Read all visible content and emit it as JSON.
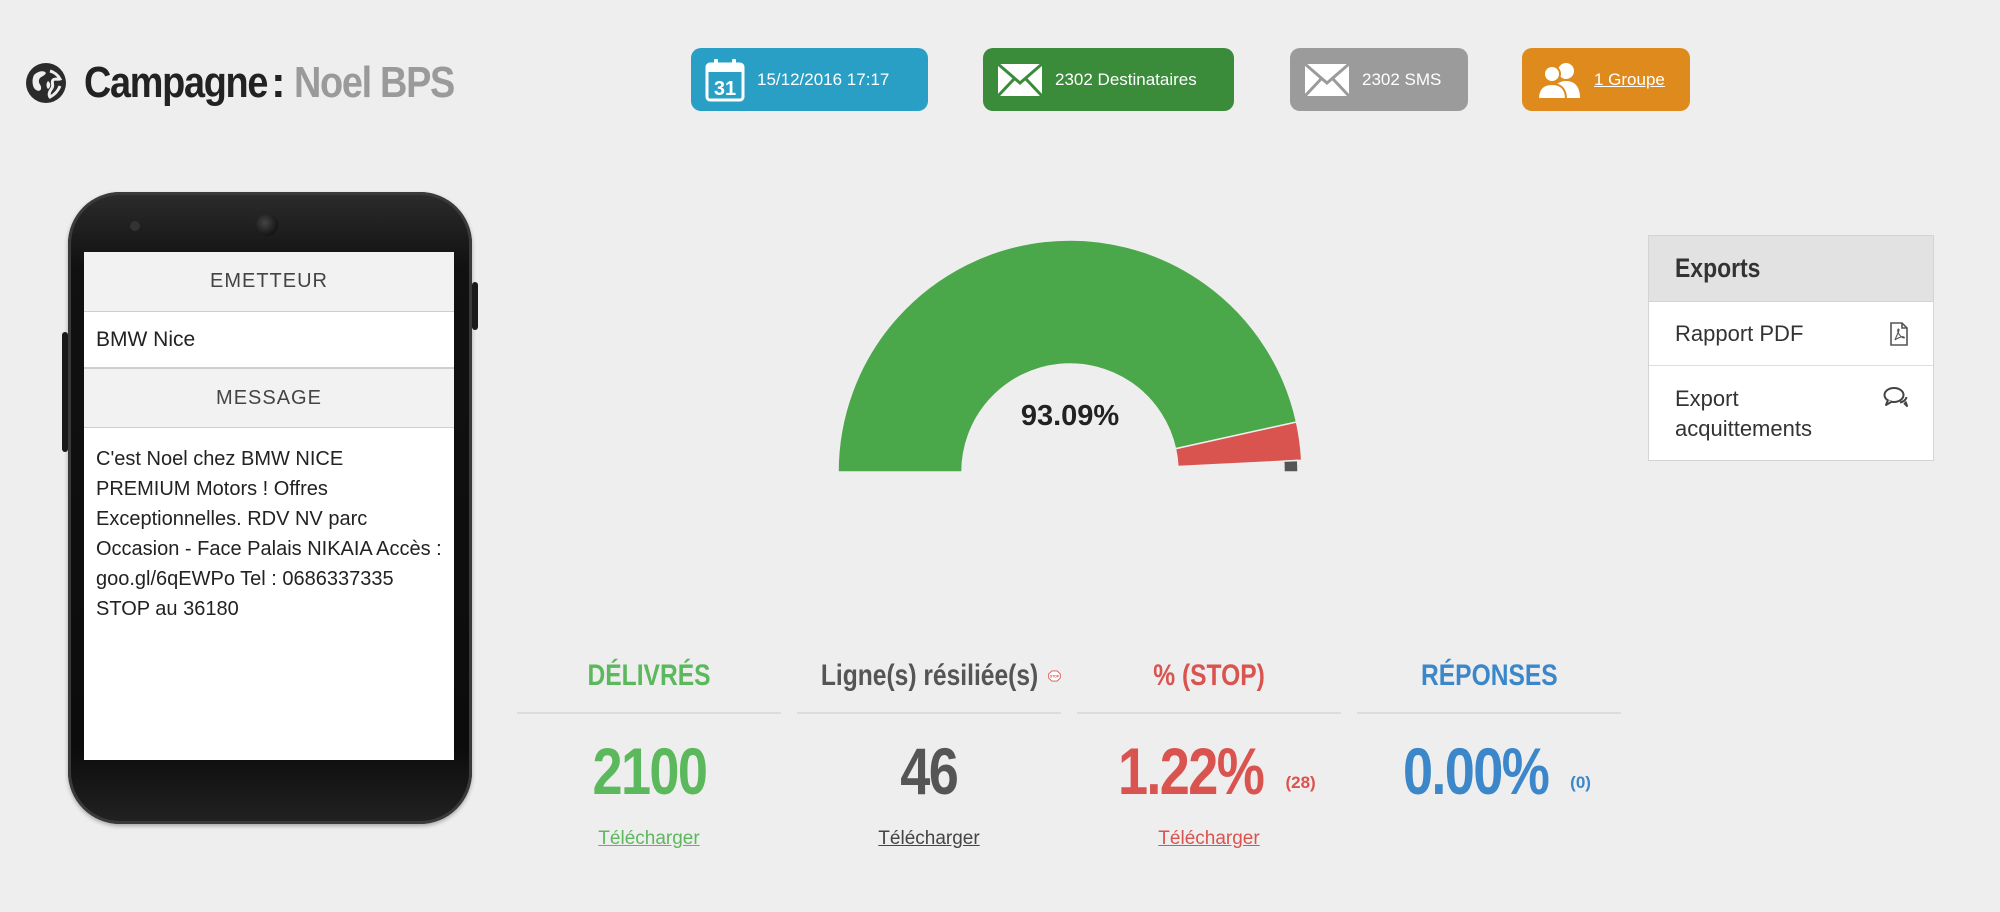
{
  "header": {
    "title_label": "Campagne",
    "title_sep": ":",
    "campaign_name": "Noel BPS",
    "icon": "globe-icon"
  },
  "badges": {
    "date": {
      "label": "15/12/2016 17:17",
      "icon": "calendar-icon",
      "color": "#2a9fc5"
    },
    "recipients": {
      "label": "2302 Destinataires",
      "icon": "envelope-icon",
      "color": "#3a8b3a"
    },
    "sms": {
      "label": "2302 SMS",
      "icon": "envelope-icon",
      "color": "#9b9b9b"
    },
    "group": {
      "label": "1 Groupe",
      "icon": "users-icon",
      "color": "#df8a1c"
    }
  },
  "phone": {
    "sender_header": "EMETTEUR",
    "sender": "BMW Nice",
    "message_header": "MESSAGE",
    "message": "C'est Noel chez BMW NICE PREMIUM Motors ! Offres Exceptionnelles. RDV NV parc Occasion - Face Palais NIKAIA Accès : goo.gl/6qEWPo Tel : 0686337335 STOP au 36180"
  },
  "gauge": {
    "label": "93.09%",
    "segments": [
      {
        "name": "delivered",
        "value": 93.09,
        "color": "#4aa84a"
      },
      {
        "name": "stop",
        "value": 5.3,
        "color": "#d9534f"
      },
      {
        "name": "other",
        "value": 1.61,
        "color": "#555555"
      }
    ]
  },
  "exports": {
    "title": "Exports",
    "items": [
      {
        "label": "Rapport PDF",
        "icon": "pdf-icon"
      },
      {
        "label_line1": "Export",
        "label_line2": "acquittements",
        "icon": "comments-icon"
      }
    ]
  },
  "stats": {
    "delivered": {
      "title": "DÉLIVRÉS",
      "value": "2100",
      "link": "Télécharger",
      "color": "#5cb85c"
    },
    "lines": {
      "title": "Ligne(s) résiliée(s)",
      "badge": "STOP",
      "value": "46",
      "link": "Télécharger",
      "color": "#555555"
    },
    "stop": {
      "title": "% (STOP)",
      "value": "1.22%",
      "sub": "(28)",
      "link": "Télécharger",
      "color": "#d9534f"
    },
    "replies": {
      "title": "RÉPONSES",
      "value": "0.00%",
      "sub": "(0)",
      "color": "#3c87c9"
    }
  }
}
